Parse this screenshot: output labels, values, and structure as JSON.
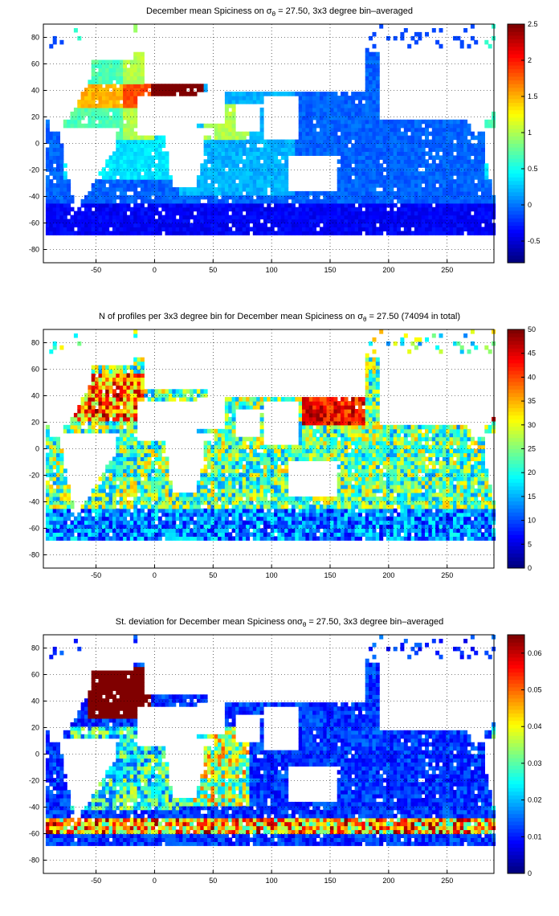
{
  "chart_data": [
    {
      "type": "heatmap",
      "title_prefix": "December mean Spiciness on ",
      "title_sigma": "σ",
      "title_sub": "θ",
      "title_suffix": " = 27.50, 3x3 degree bin–averaged",
      "xlim": [
        -95,
        290
      ],
      "ylim": [
        -90,
        90
      ],
      "x_ticks": [
        "-50",
        "0",
        "50",
        "100",
        "150",
        "200",
        "250"
      ],
      "y_ticks": [
        "80",
        "60",
        "40",
        "20",
        "0",
        "-20",
        "-40",
        "-60",
        "-80"
      ],
      "grid": true,
      "colorbar": {
        "range": [
          -0.8,
          2.5
        ],
        "ticks": [
          "2.5",
          "2",
          "1.5",
          "1",
          "0.5",
          "0",
          "-0.5"
        ],
        "colormap": "jet"
      },
      "field": "spiciness"
    },
    {
      "type": "heatmap",
      "title_prefix": "N of profiles per 3x3 degree bin for December mean Spiciness on ",
      "title_sigma": "σ",
      "title_sub": "θ",
      "title_suffix": " = 27.50 (74094 in total)",
      "xlim": [
        -95,
        290
      ],
      "ylim": [
        -90,
        90
      ],
      "x_ticks": [
        "-50",
        "0",
        "50",
        "100",
        "150",
        "200",
        "250"
      ],
      "y_ticks": [
        "80",
        "60",
        "40",
        "20",
        "0",
        "-20",
        "-40",
        "-60",
        "-80"
      ],
      "grid": true,
      "colorbar": {
        "range": [
          0,
          50
        ],
        "ticks": [
          "50",
          "45",
          "40",
          "35",
          "30",
          "25",
          "20",
          "15",
          "10",
          "5",
          "0"
        ],
        "colormap": "jet"
      },
      "field": "count"
    },
    {
      "type": "heatmap",
      "title_prefix": "St. deviation for December mean Spiciness on",
      "title_sigma": "σ",
      "title_sub": "θ",
      "title_suffix": " = 27.50, 3x3 degree bin–averaged",
      "xlim": [
        -95,
        290
      ],
      "ylim": [
        -90,
        90
      ],
      "x_ticks": [
        "-50",
        "0",
        "50",
        "100",
        "150",
        "200",
        "250"
      ],
      "y_ticks": [
        "80",
        "60",
        "40",
        "20",
        "0",
        "-20",
        "-40",
        "-60",
        "-80"
      ],
      "grid": true,
      "colorbar": {
        "range": [
          0,
          0.065
        ],
        "ticks": [
          "0.06",
          "0.05",
          "0.04",
          "0.03",
          "0.02",
          "0.01",
          "0"
        ],
        "colormap": "jet"
      },
      "field": "stdev"
    }
  ]
}
